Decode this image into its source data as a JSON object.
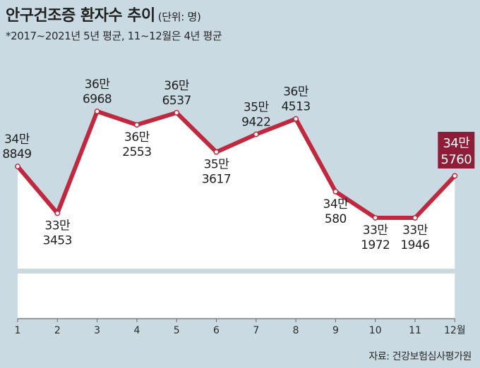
{
  "header": {
    "title": "안구건조증 환자수 추이",
    "unit": "(단위: 명)",
    "note": "*2017~2021년 5년 평균, 11~12월은 4년 평균"
  },
  "footer": {
    "source": "자료: 건강보험심사평가원"
  },
  "colors": {
    "line": "#c1273d",
    "highlight_box": "#8f1d37",
    "background": "#c9dae2",
    "area": "#ffffff"
  },
  "chart_data": {
    "type": "line",
    "categories": [
      "1",
      "2",
      "3",
      "4",
      "5",
      "6",
      "7",
      "8",
      "9",
      "10",
      "11",
      "12월"
    ],
    "values": [
      348849,
      333453,
      366968,
      362553,
      366537,
      353617,
      359422,
      364513,
      340580,
      331972,
      331946,
      345760
    ],
    "data_labels": [
      [
        "34만",
        "8849"
      ],
      [
        "33만",
        "3453"
      ],
      [
        "36만",
        "6968"
      ],
      [
        "36만",
        "2553"
      ],
      [
        "36만",
        "6537"
      ],
      [
        "35만",
        "3617"
      ],
      [
        "35만",
        "9422"
      ],
      [
        "36만",
        "4513"
      ],
      [
        "34만",
        "580"
      ],
      [
        "33만",
        "1972"
      ],
      [
        "33만",
        "1946"
      ],
      [
        "34만",
        "5760"
      ]
    ],
    "label_position": [
      "above",
      "below",
      "above",
      "below",
      "above",
      "below",
      "above",
      "above",
      "below",
      "below",
      "below",
      "above"
    ],
    "highlight_index": 11,
    "grid": false,
    "axis_break": true
  }
}
